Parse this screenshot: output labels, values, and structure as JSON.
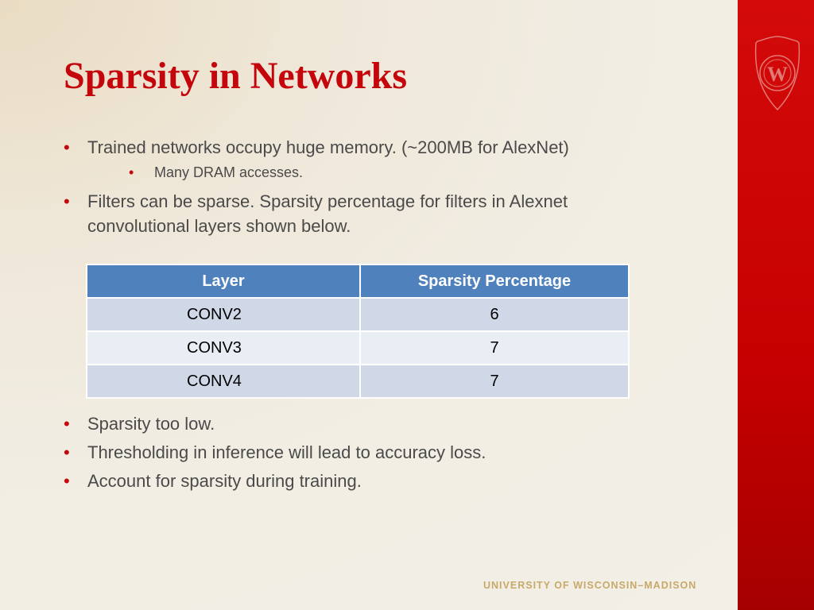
{
  "slide": {
    "title": "Sparsity in Networks",
    "bullets_top": [
      {
        "text": "Trained networks occupy huge memory. (~200MB for AlexNet)",
        "sub": [
          "Many DRAM accesses."
        ]
      },
      {
        "text": "Filters can be sparse. Sparsity percentage for filters in Alexnet convolutional layers shown below."
      }
    ],
    "table": {
      "headers": [
        "Layer",
        "Sparsity  Percentage"
      ],
      "rows": [
        {
          "layer": "CONV2",
          "value": "6"
        },
        {
          "layer": "CONV3",
          "value": "7"
        },
        {
          "layer": "CONV4",
          "value": "7"
        }
      ]
    },
    "bullets_bottom": [
      "Sparsity too low.",
      "Thresholding in inference will lead to accuracy loss.",
      "Account for sparsity during training."
    ],
    "footer": "UNIVERSITY OF WISCONSIN–MADISON",
    "crest_letter": "W"
  },
  "colors": {
    "title": "#c5050c",
    "bullet": "#c5050c",
    "red_band": "#c60000",
    "table_header": "#4f81bd",
    "table_row_dark": "#d0d8e8",
    "table_row_light": "#e9edf4",
    "footer": "#c8a96a"
  },
  "icons": {
    "crest": "uw-crest-icon",
    "bullet": "bullet-dot-icon"
  }
}
